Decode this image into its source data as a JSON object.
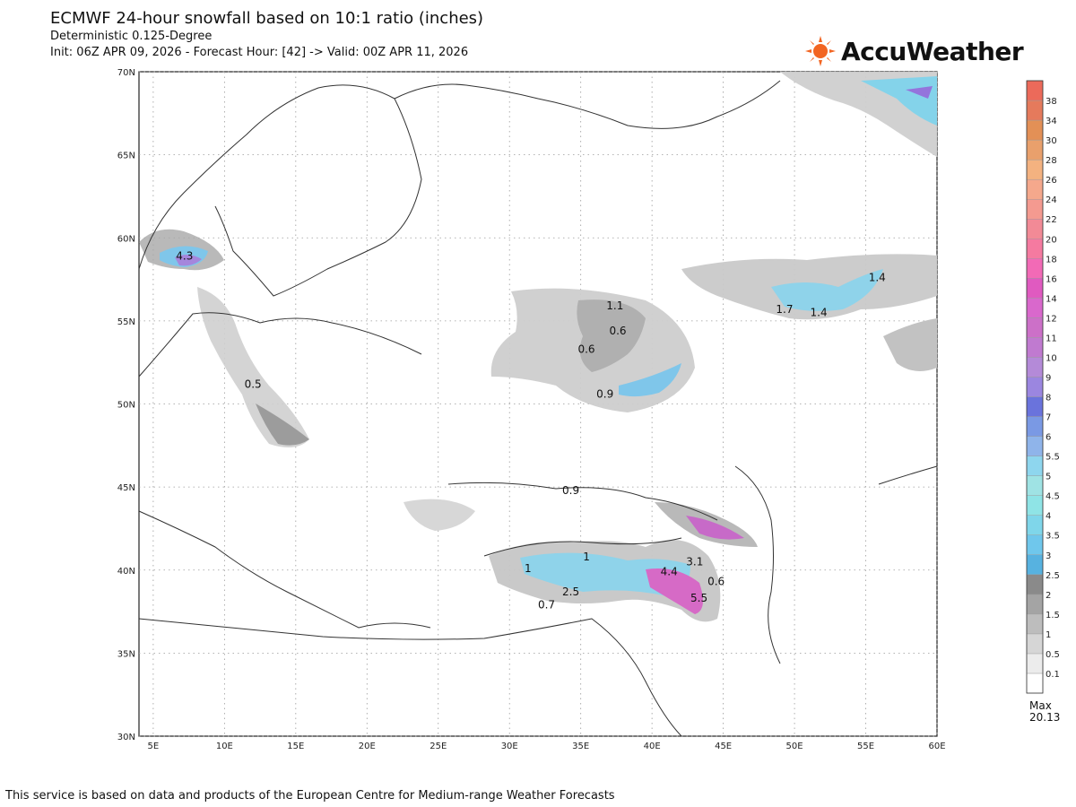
{
  "header": {
    "title": "ECMWF 24-hour snowfall based on 10:1 ratio (inches)",
    "model_line": "Deterministic 0.125-Degree",
    "init_line": "Init: 06Z APR 09, 2026 - Forecast Hour: [42] -> Valid: 00Z APR 11, 2026"
  },
  "brand": {
    "name": "AccuWeather",
    "accent": "#f26522"
  },
  "map": {
    "lon_labels": [
      "5E",
      "10E",
      "15E",
      "20E",
      "25E",
      "30E",
      "35E",
      "40E",
      "45E",
      "50E",
      "55E",
      "60E"
    ],
    "lat_labels": [
      "70N",
      "65N",
      "60N",
      "55N",
      "50N",
      "45N",
      "40N",
      "35N",
      "30N"
    ],
    "lon_range": [
      4,
      60
    ],
    "lat_range": [
      30,
      70
    ],
    "snow_labels": [
      {
        "text": "4.3",
        "lon": 7.2,
        "lat": 58.9
      },
      {
        "text": "0.5",
        "lon": 12.0,
        "lat": 51.2
      },
      {
        "text": "1.1",
        "lon": 37.4,
        "lat": 55.9
      },
      {
        "text": "0.6",
        "lon": 37.6,
        "lat": 54.4
      },
      {
        "text": "0.6",
        "lon": 35.4,
        "lat": 53.3
      },
      {
        "text": "0.9",
        "lon": 36.7,
        "lat": 50.6
      },
      {
        "text": "1.4",
        "lon": 55.8,
        "lat": 57.6
      },
      {
        "text": "1.7",
        "lon": 49.3,
        "lat": 55.7
      },
      {
        "text": "1.4",
        "lon": 51.7,
        "lat": 55.5
      },
      {
        "text": "0.9",
        "lon": 34.3,
        "lat": 44.8
      },
      {
        "text": "1",
        "lon": 35.4,
        "lat": 40.8
      },
      {
        "text": "1",
        "lon": 31.3,
        "lat": 40.1
      },
      {
        "text": "4.4",
        "lon": 41.2,
        "lat": 39.9
      },
      {
        "text": "3.1",
        "lon": 43.0,
        "lat": 40.5
      },
      {
        "text": "0.6",
        "lon": 44.5,
        "lat": 39.3
      },
      {
        "text": "2.5",
        "lon": 34.3,
        "lat": 38.7
      },
      {
        "text": "5.5",
        "lon": 43.3,
        "lat": 38.3
      },
      {
        "text": "0.7",
        "lon": 32.6,
        "lat": 37.9
      }
    ]
  },
  "colorbar": {
    "levels": [
      "0.1",
      "0.5",
      "1",
      "1.5",
      "2",
      "2.5",
      "3",
      "3.5",
      "4",
      "4.5",
      "5",
      "5.5",
      "6",
      "7",
      "8",
      "9",
      "10",
      "11",
      "12",
      "14",
      "16",
      "18",
      "20",
      "22",
      "24",
      "26",
      "28",
      "30",
      "34",
      "38"
    ],
    "colors": [
      "#ffffff",
      "#ececec",
      "#d6d6d6",
      "#bdbdbd",
      "#a4a4a4",
      "#8a8a8a",
      "#57b2e0",
      "#6fc7ec",
      "#7fd6ea",
      "#8fe4e6",
      "#9fe3e4",
      "#8ed6ee",
      "#8fb4ea",
      "#7a99e4",
      "#6a73dc",
      "#9b86e0",
      "#b48ad8",
      "#c07ad0",
      "#cc70c8",
      "#d968cc",
      "#e05ac0",
      "#f26ab6",
      "#f57aa0",
      "#f28a96",
      "#f49a90",
      "#f5a88c",
      "#f4b280",
      "#e9a06c",
      "#e39056",
      "#e57a5c",
      "#ec6a5a"
    ],
    "max_label": "Max",
    "max_value": "20.13"
  },
  "footer": {
    "text": "This service is based on data and products of the European Centre for Medium-range Weather Forecasts"
  }
}
